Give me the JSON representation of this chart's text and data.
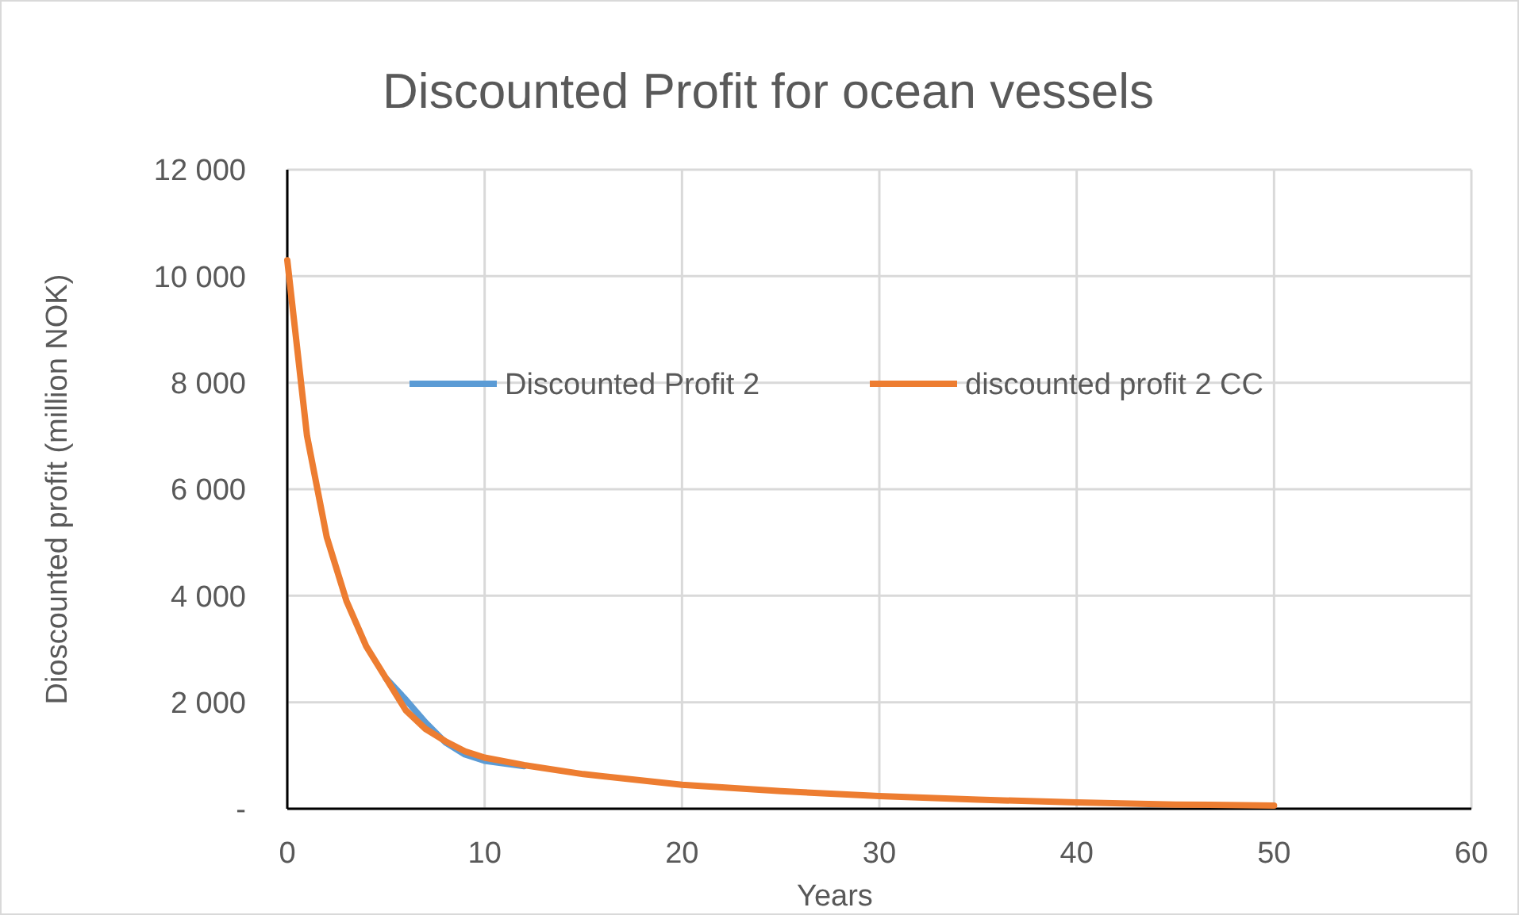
{
  "chart_data": {
    "type": "line",
    "title": "Discounted Profit for ocean vessels",
    "xlabel": "Years",
    "ylabel": "Dioscounted profit (million NOK)",
    "x": [
      0,
      1,
      2,
      3,
      4,
      5,
      6,
      7,
      8,
      9,
      10,
      12,
      15,
      20,
      25,
      30,
      35,
      40,
      45,
      50
    ],
    "series": [
      {
        "name": "Discounted Profit 2",
        "color": "#5b9bd5",
        "values": [
          null,
          null,
          null,
          null,
          null,
          2450,
          2050,
          1620,
          1250,
          1020,
          900,
          800,
          null,
          null,
          null,
          null,
          null,
          null,
          null,
          null
        ]
      },
      {
        "name": "discounted profit 2 CC",
        "color": "#ed7d31",
        "values": [
          10300,
          7000,
          5100,
          3900,
          3050,
          2450,
          1850,
          1500,
          1270,
          1080,
          960,
          820,
          650,
          450,
          330,
          240,
          170,
          120,
          80,
          60
        ]
      }
    ],
    "xlim": [
      0,
      60
    ],
    "xticks": [
      0,
      10,
      20,
      30,
      40,
      50,
      60
    ],
    "ylim": [
      0,
      12000
    ],
    "yticks": [
      {
        "value": 0,
        "label": "-"
      },
      {
        "value": 2000,
        "label": "2 000"
      },
      {
        "value": 4000,
        "label": "4 000"
      },
      {
        "value": 6000,
        "label": "6 000"
      },
      {
        "value": 8000,
        "label": "8 000"
      },
      {
        "value": 10000,
        "label": "10 000"
      },
      {
        "value": 12000,
        "label": "12 000"
      }
    ],
    "grid": true,
    "legend": "top",
    "marker": "none",
    "line_style": "solid"
  }
}
